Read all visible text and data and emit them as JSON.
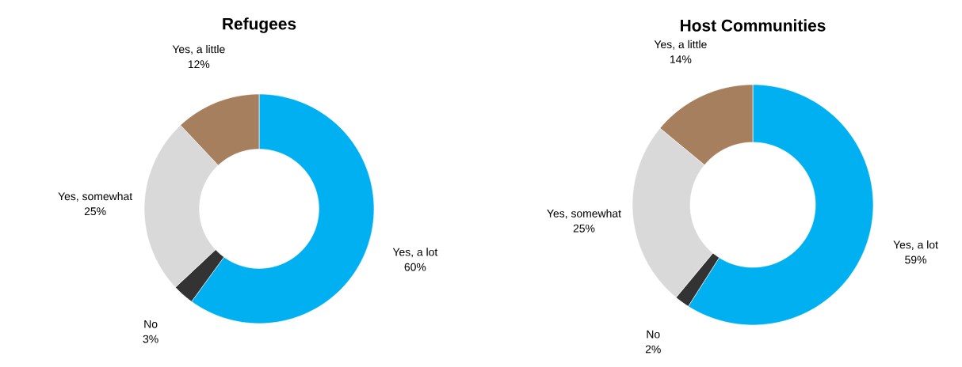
{
  "chart_data": [
    {
      "type": "donut",
      "title": "Refugees",
      "categories": [
        "Yes, a lot",
        "No",
        "Yes, somewhat",
        "Yes, a little"
      ],
      "values": [
        60,
        3,
        25,
        12
      ],
      "value_labels": [
        "60%",
        "3%",
        "25%",
        "12%"
      ],
      "colors": [
        "#00b0f0",
        "#333333",
        "#d9d9d9",
        "#a6805e"
      ]
    },
    {
      "type": "donut",
      "title": "Host Communities",
      "categories": [
        "Yes, a lot",
        "No",
        "Yes, somewhat",
        "Yes, a little"
      ],
      "values": [
        59,
        2,
        25,
        14
      ],
      "value_labels": [
        "59%",
        "2%",
        "25%",
        "14%"
      ],
      "colors": [
        "#00b0f0",
        "#333333",
        "#d9d9d9",
        "#a6805e"
      ]
    }
  ]
}
